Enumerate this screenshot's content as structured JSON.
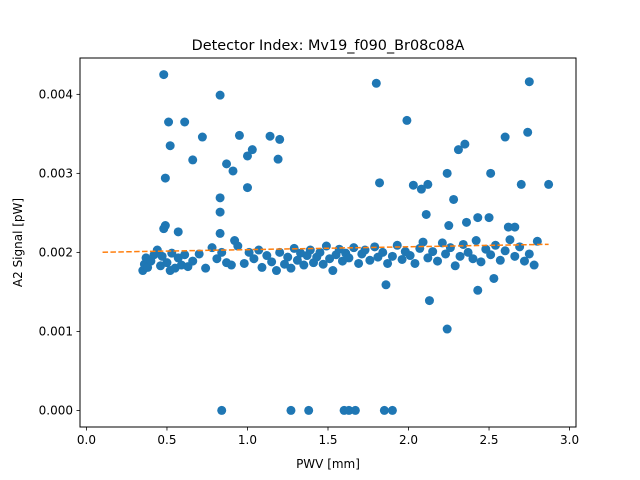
{
  "chart_data": {
    "type": "scatter",
    "title": "Detector Index: Mv19_f090_Br08c08A",
    "xlabel": "PWV [mm]",
    "ylabel": "A2 Signal [pW]",
    "xlim": [
      -0.04,
      3.04
    ],
    "ylim": [
      -0.00021,
      0.00446
    ],
    "xticks": [
      0.0,
      0.5,
      1.0,
      1.5,
      2.0,
      2.5,
      3.0
    ],
    "xtick_labels": [
      "0.0",
      "0.5",
      "1.0",
      "1.5",
      "2.0",
      "2.5",
      "3.0"
    ],
    "yticks": [
      0.0,
      0.001,
      0.002,
      0.003,
      0.004
    ],
    "ytick_labels": [
      "0.000",
      "0.001",
      "0.002",
      "0.003",
      "0.004"
    ],
    "grid": false,
    "legend": "none",
    "colors": {
      "points": "#1f77b4",
      "fit": "#ff7f0e"
    },
    "fit_line": {
      "style": "dashed",
      "x": [
        0.1,
        2.87
      ],
      "y": [
        0.002002,
        0.002102
      ]
    },
    "series": [
      {
        "points": [
          [
            0.48,
            0.00425
          ],
          [
            0.83,
            0.00399
          ],
          [
            1.8,
            0.00414
          ],
          [
            2.75,
            0.00416
          ],
          [
            0.51,
            0.00365
          ],
          [
            0.61,
            0.00365
          ],
          [
            0.72,
            0.00346
          ],
          [
            0.95,
            0.00348
          ],
          [
            1.14,
            0.00347
          ],
          [
            1.2,
            0.00343
          ],
          [
            1.99,
            0.00367
          ],
          [
            2.6,
            0.00346
          ],
          [
            2.74,
            0.00352
          ],
          [
            0.52,
            0.00335
          ],
          [
            1.03,
            0.0033
          ],
          [
            1.0,
            0.00322
          ],
          [
            0.66,
            0.00317
          ],
          [
            0.87,
            0.00312
          ],
          [
            0.91,
            0.00303
          ],
          [
            1.19,
            0.00318
          ],
          [
            2.35,
            0.00337
          ],
          [
            2.31,
            0.0033
          ],
          [
            2.24,
            0.003
          ],
          [
            2.51,
            0.003
          ],
          [
            0.49,
            0.00294
          ],
          [
            1.0,
            0.00282
          ],
          [
            1.82,
            0.00288
          ],
          [
            2.03,
            0.00285
          ],
          [
            2.12,
            0.00286
          ],
          [
            2.08,
            0.0028
          ],
          [
            2.7,
            0.00286
          ],
          [
            2.87,
            0.00286
          ],
          [
            0.83,
            0.00269
          ],
          [
            2.28,
            0.00267
          ],
          [
            0.83,
            0.00251
          ],
          [
            2.11,
            0.00248
          ],
          [
            2.36,
            0.00238
          ],
          [
            2.43,
            0.00244
          ],
          [
            2.5,
            0.00244
          ],
          [
            2.62,
            0.00232
          ],
          [
            2.66,
            0.00232
          ],
          [
            0.49,
            0.00234
          ],
          [
            0.48,
            0.0023
          ],
          [
            0.57,
            0.00226
          ],
          [
            0.83,
            0.00224
          ],
          [
            2.25,
            0.00234
          ],
          [
            1.86,
            0.00159
          ],
          [
            2.13,
            0.00139
          ],
          [
            2.43,
            0.00152
          ],
          [
            2.53,
            0.00167
          ],
          [
            2.24,
            0.00103
          ],
          [
            0.84,
            0.0
          ],
          [
            1.27,
            0.0
          ],
          [
            1.38,
            0.0
          ],
          [
            1.6,
            0.0
          ],
          [
            1.63,
            0.0
          ],
          [
            1.67,
            0.0
          ],
          [
            1.85,
            0.0
          ],
          [
            1.9,
            0.0
          ],
          [
            0.35,
            0.00177
          ],
          [
            0.36,
            0.00185
          ],
          [
            0.37,
            0.00193
          ],
          [
            0.38,
            0.00181
          ],
          [
            0.4,
            0.00189
          ],
          [
            0.42,
            0.00197
          ],
          [
            0.44,
            0.00203
          ],
          [
            0.46,
            0.00183
          ],
          [
            0.47,
            0.00195
          ],
          [
            0.5,
            0.00187
          ],
          [
            0.52,
            0.00177
          ],
          [
            0.53,
            0.00199
          ],
          [
            0.55,
            0.0018
          ],
          [
            0.57,
            0.00193
          ],
          [
            0.59,
            0.00184
          ],
          [
            0.61,
            0.00197
          ],
          [
            0.63,
            0.00182
          ],
          [
            0.66,
            0.00189
          ],
          [
            0.7,
            0.00198
          ],
          [
            0.74,
            0.0018
          ],
          [
            0.78,
            0.00206
          ],
          [
            0.81,
            0.00192
          ],
          [
            0.84,
            0.002
          ],
          [
            0.87,
            0.00187
          ],
          [
            0.9,
            0.00184
          ],
          [
            0.92,
            0.00215
          ],
          [
            0.94,
            0.00208
          ],
          [
            0.98,
            0.00186
          ],
          [
            1.01,
            0.002
          ],
          [
            1.04,
            0.00192
          ],
          [
            1.07,
            0.00203
          ],
          [
            1.09,
            0.00181
          ],
          [
            1.12,
            0.00196
          ],
          [
            1.15,
            0.00188
          ],
          [
            1.18,
            0.00177
          ],
          [
            1.2,
            0.002
          ],
          [
            1.23,
            0.00185
          ],
          [
            1.25,
            0.00194
          ],
          [
            1.27,
            0.0018
          ],
          [
            1.29,
            0.00205
          ],
          [
            1.31,
            0.0019
          ],
          [
            1.33,
            0.00199
          ],
          [
            1.35,
            0.00184
          ],
          [
            1.37,
            0.00196
          ],
          [
            1.39,
            0.00203
          ],
          [
            1.41,
            0.00187
          ],
          [
            1.43,
            0.00194
          ],
          [
            1.45,
            0.002
          ],
          [
            1.47,
            0.00185
          ],
          [
            1.49,
            0.00208
          ],
          [
            1.51,
            0.00192
          ],
          [
            1.53,
            0.00177
          ],
          [
            1.55,
            0.00197
          ],
          [
            1.57,
            0.00204
          ],
          [
            1.59,
            0.00189
          ],
          [
            1.61,
            0.00199
          ],
          [
            1.63,
            0.00193
          ],
          [
            1.66,
            0.00206
          ],
          [
            1.69,
            0.00186
          ],
          [
            1.71,
            0.00198
          ],
          [
            1.73,
            0.00203
          ],
          [
            1.76,
            0.0019
          ],
          [
            1.79,
            0.00207
          ],
          [
            1.81,
            0.00194
          ],
          [
            1.84,
            0.002
          ],
          [
            1.87,
            0.00186
          ],
          [
            1.9,
            0.00195
          ],
          [
            1.93,
            0.00209
          ],
          [
            1.96,
            0.00191
          ],
          [
            1.98,
            0.00201
          ],
          [
            2.01,
            0.00196
          ],
          [
            2.04,
            0.00186
          ],
          [
            2.07,
            0.00205
          ],
          [
            2.09,
            0.00213
          ],
          [
            2.12,
            0.00193
          ],
          [
            2.15,
            0.00201
          ],
          [
            2.18,
            0.00189
          ],
          [
            2.21,
            0.00212
          ],
          [
            2.23,
            0.00198
          ],
          [
            2.26,
            0.00206
          ],
          [
            2.29,
            0.00183
          ],
          [
            2.32,
            0.00195
          ],
          [
            2.34,
            0.0021
          ],
          [
            2.37,
            0.002
          ],
          [
            2.4,
            0.00192
          ],
          [
            2.42,
            0.00215
          ],
          [
            2.45,
            0.00188
          ],
          [
            2.48,
            0.00204
          ],
          [
            2.51,
            0.00197
          ],
          [
            2.54,
            0.00209
          ],
          [
            2.57,
            0.0019
          ],
          [
            2.6,
            0.00202
          ],
          [
            2.63,
            0.00216
          ],
          [
            2.66,
            0.00195
          ],
          [
            2.69,
            0.00207
          ],
          [
            2.72,
            0.00189
          ],
          [
            2.75,
            0.00198
          ],
          [
            2.78,
            0.00184
          ],
          [
            2.8,
            0.00214
          ]
        ]
      }
    ]
  }
}
